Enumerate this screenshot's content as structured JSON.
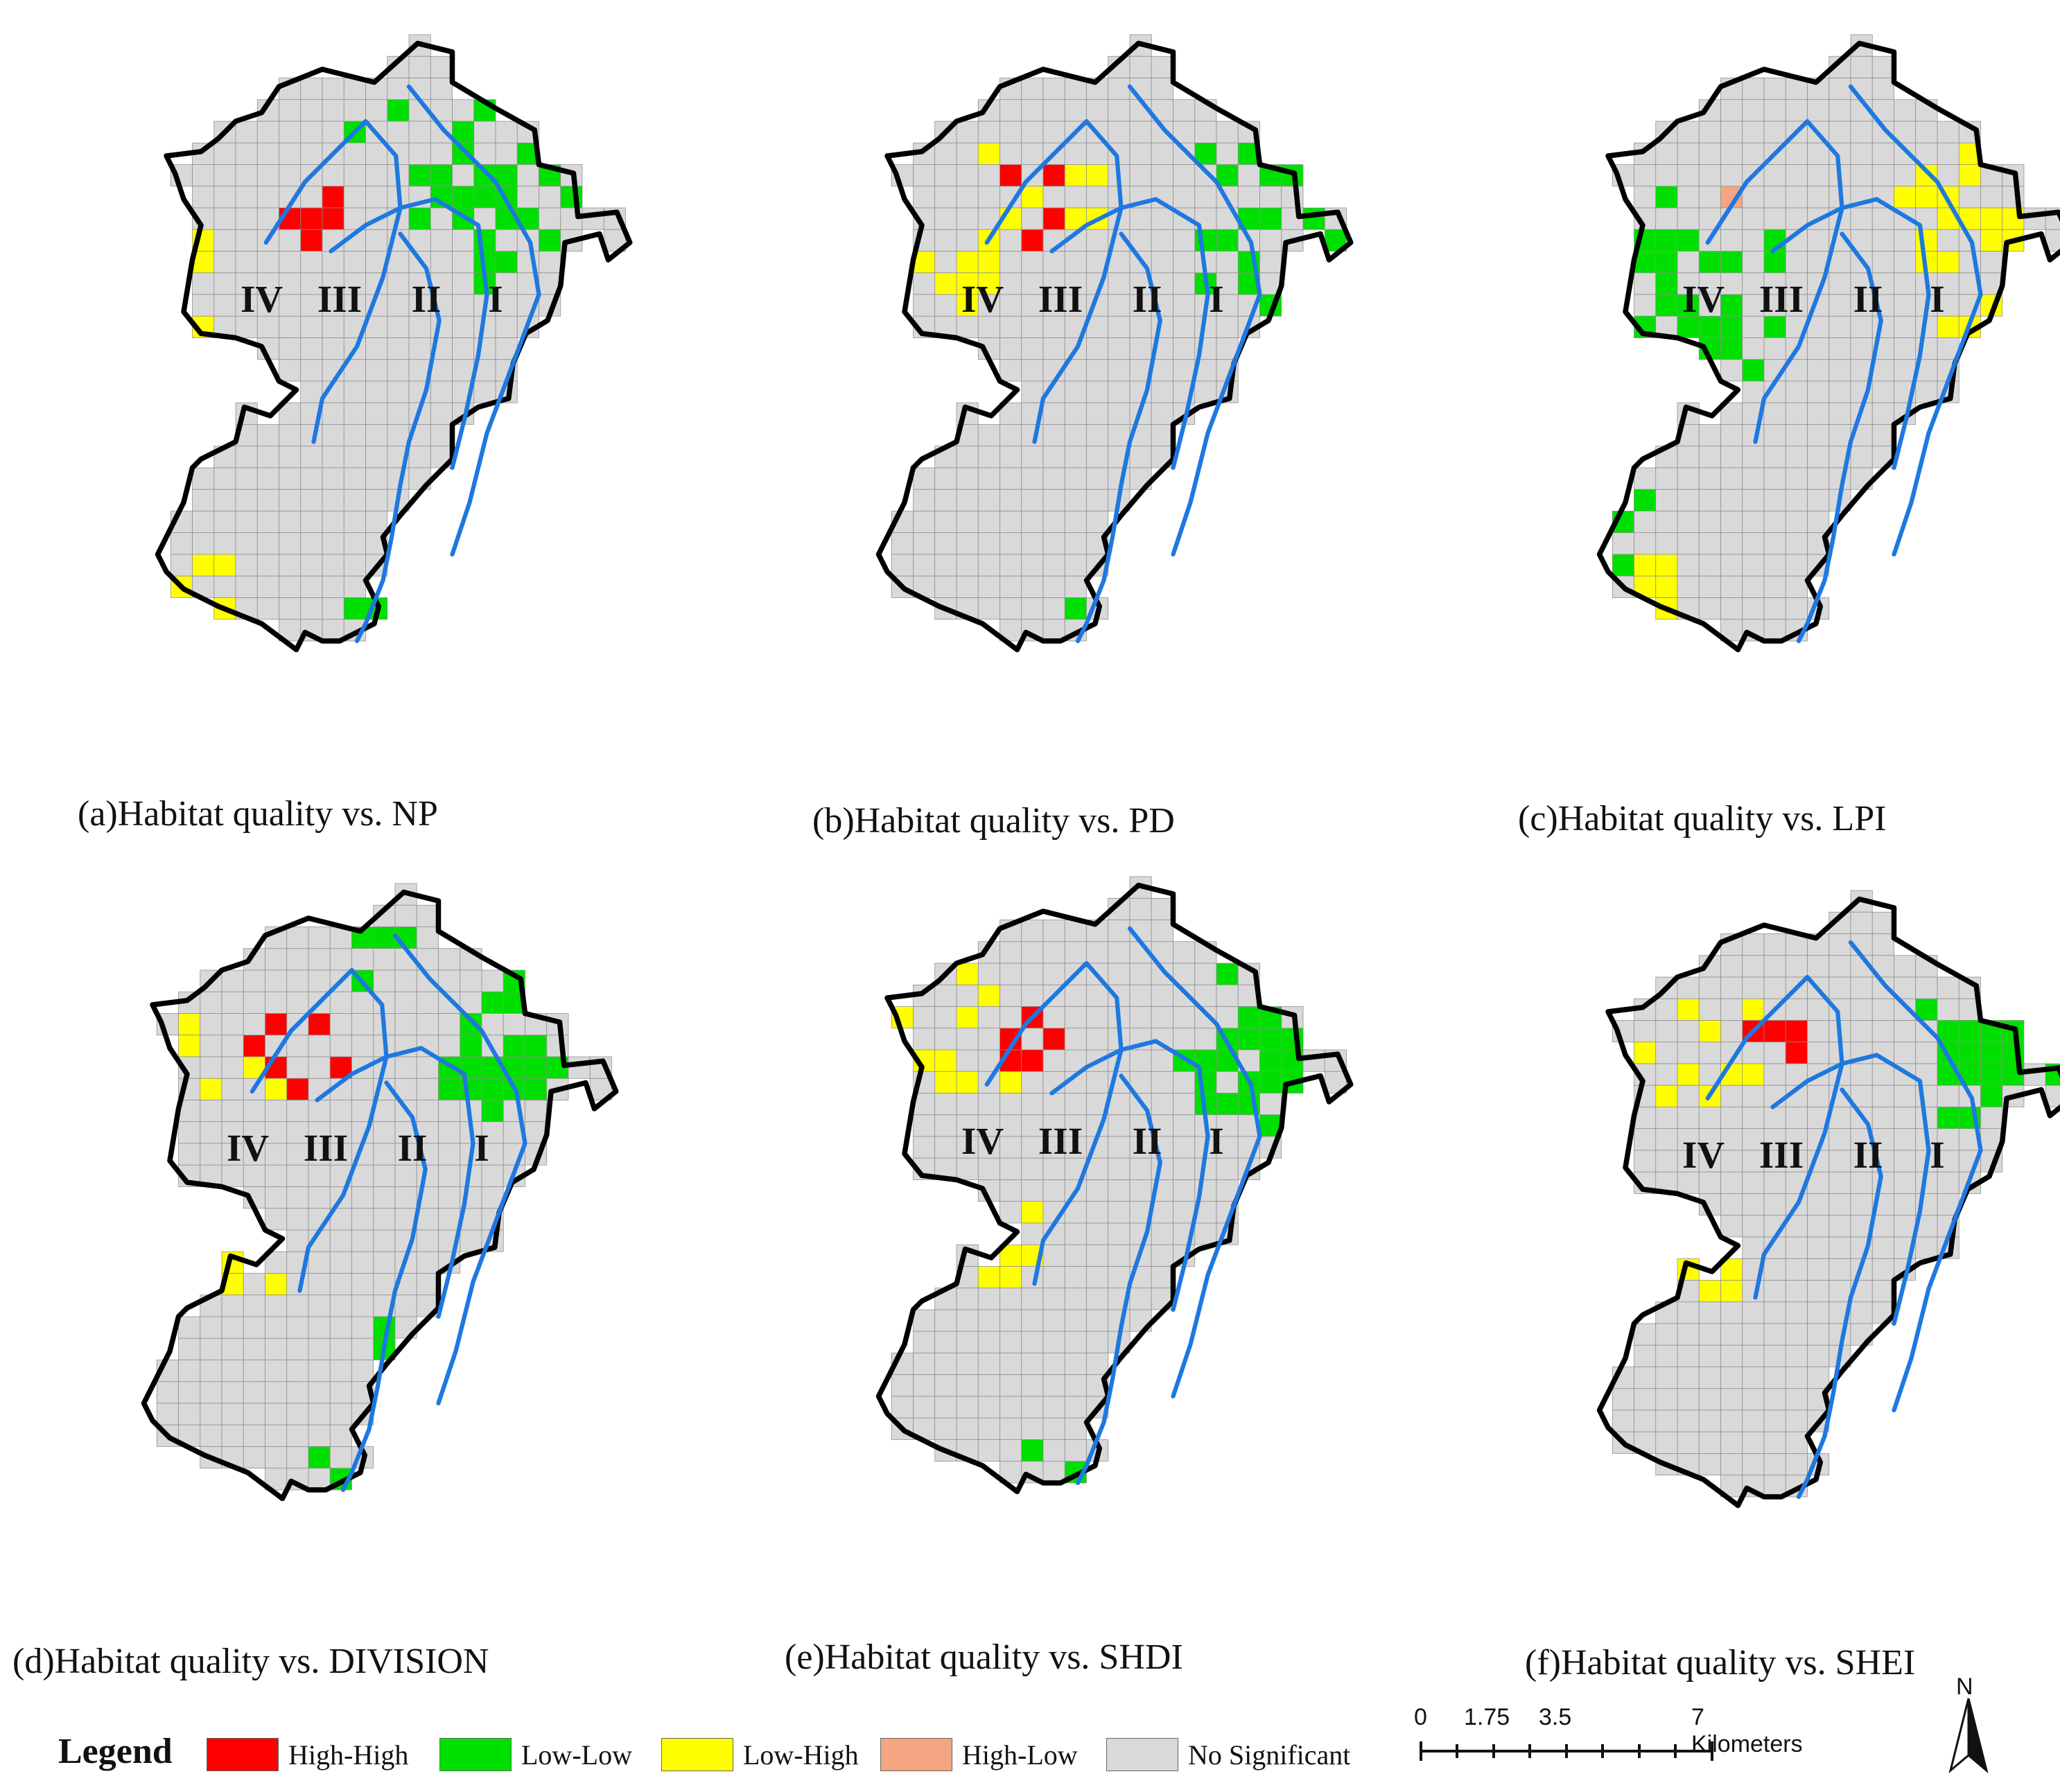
{
  "colors": {
    "high_high": "#ff0000",
    "low_low": "#00e000",
    "low_high": "#ffff00",
    "high_low": "#f4a582",
    "no_significant": "#d9d9d9",
    "boundary": "#000000",
    "ring_lines": "#1e78e0"
  },
  "zones": [
    "IV",
    "III",
    "II",
    "I"
  ],
  "panels": [
    {
      "id": "a",
      "caption": "(a)Habitat quality vs. NP"
    },
    {
      "id": "b",
      "caption": "(b)Habitat quality vs. PD"
    },
    {
      "id": "c",
      "caption": "(c)Habitat quality vs. LPI"
    },
    {
      "id": "d",
      "caption": "(d)Habitat quality vs. DIVISION"
    },
    {
      "id": "e",
      "caption": "(e)Habitat quality vs. SHDI"
    },
    {
      "id": "f",
      "caption": "(f)Habitat quality vs. SHEI"
    }
  ],
  "legend": {
    "title": "Legend",
    "items": [
      {
        "label": "High-High",
        "color_key": "high_high"
      },
      {
        "label": "Low-Low",
        "color_key": "low_low"
      },
      {
        "label": "Low-High",
        "color_key": "low_high"
      },
      {
        "label": "High-Low",
        "color_key": "high_low"
      },
      {
        "label": "No Significant",
        "color_key": "no_significant"
      }
    ]
  },
  "scale_bar": {
    "ticks": [
      "0",
      "1.75",
      "3.5",
      "7 Kilometers"
    ]
  },
  "north_arrow": {
    "label": "N"
  }
}
